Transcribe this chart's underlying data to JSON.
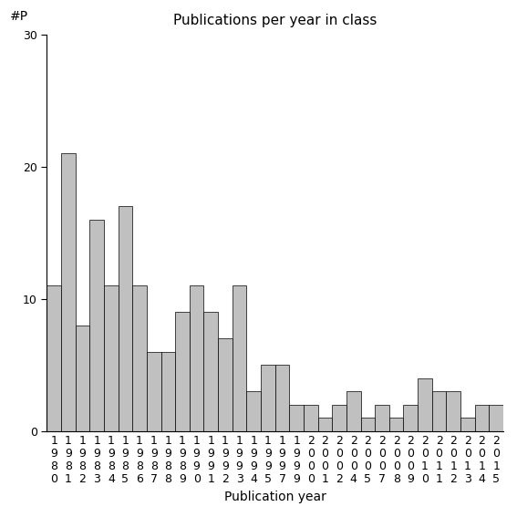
{
  "title": "Publications per year in class",
  "xlabel": "Publication year",
  "ylabel": "#P",
  "categories": [
    "1980",
    "1981",
    "1982",
    "1983",
    "1984",
    "1985",
    "1986",
    "1987",
    "1988",
    "1989",
    "1990",
    "1991",
    "1992",
    "1993",
    "1994",
    "1995",
    "1997",
    "1999",
    "2000",
    "2001",
    "2002",
    "2004",
    "2005",
    "2007",
    "2008",
    "2009",
    "2010",
    "2011",
    "2012",
    "2013",
    "2014",
    "2015"
  ],
  "values": [
    11,
    21,
    8,
    16,
    11,
    17,
    11,
    6,
    6,
    9,
    11,
    9,
    7,
    11,
    3,
    5,
    5,
    2,
    2,
    1,
    2,
    3,
    1,
    2,
    1,
    2,
    4,
    3,
    3,
    1,
    2,
    2
  ],
  "bar_color": "#c0c0c0",
  "bar_edge_color": "#000000",
  "ylim": [
    0,
    30
  ],
  "yticks": [
    0,
    10,
    20,
    30
  ],
  "background_color": "#ffffff",
  "title_fontsize": 11,
  "axis_fontsize": 10,
  "tick_fontsize": 9
}
